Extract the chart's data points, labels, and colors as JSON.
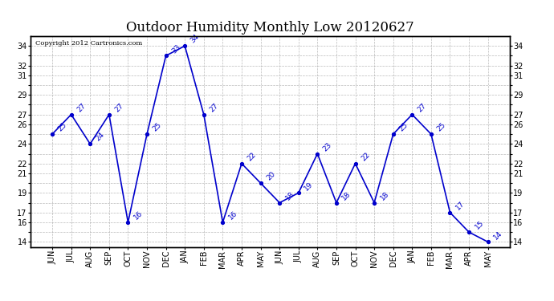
{
  "title": "Outdoor Humidity Monthly Low 20120627",
  "copyright_text": "Copyright 2012 Cartronics.com",
  "categories": [
    "JUN",
    "JUL",
    "AUG",
    "SEP",
    "OCT",
    "NOV",
    "DEC",
    "JAN",
    "FEB",
    "MAR",
    "APR",
    "MAY",
    "JUN",
    "JUL",
    "AUG",
    "SEP",
    "OCT",
    "NOV",
    "DEC",
    "JAN",
    "FEB",
    "MAR",
    "APR",
    "MAY"
  ],
  "values": [
    25,
    27,
    24,
    27,
    16,
    25,
    33,
    34,
    27,
    16,
    22,
    20,
    18,
    19,
    23,
    18,
    22,
    18,
    25,
    27,
    25,
    17,
    15,
    14
  ],
  "line_color": "#0000cc",
  "marker_color": "#0000cc",
  "bg_color": "#ffffff",
  "grid_color": "#aaaaaa",
  "ylim_min": 13.5,
  "ylim_max": 35.0,
  "yticks_all": [
    14,
    15,
    16,
    17,
    18,
    19,
    20,
    21,
    22,
    23,
    24,
    25,
    26,
    27,
    28,
    29,
    30,
    31,
    32,
    33,
    34
  ],
  "yticks_labeled": [
    14,
    16,
    17,
    19,
    21,
    22,
    24,
    26,
    27,
    29,
    31,
    32,
    34
  ],
  "title_fontsize": 12,
  "tick_fontsize": 7,
  "annot_fontsize": 6.5,
  "copyright_fontsize": 6
}
